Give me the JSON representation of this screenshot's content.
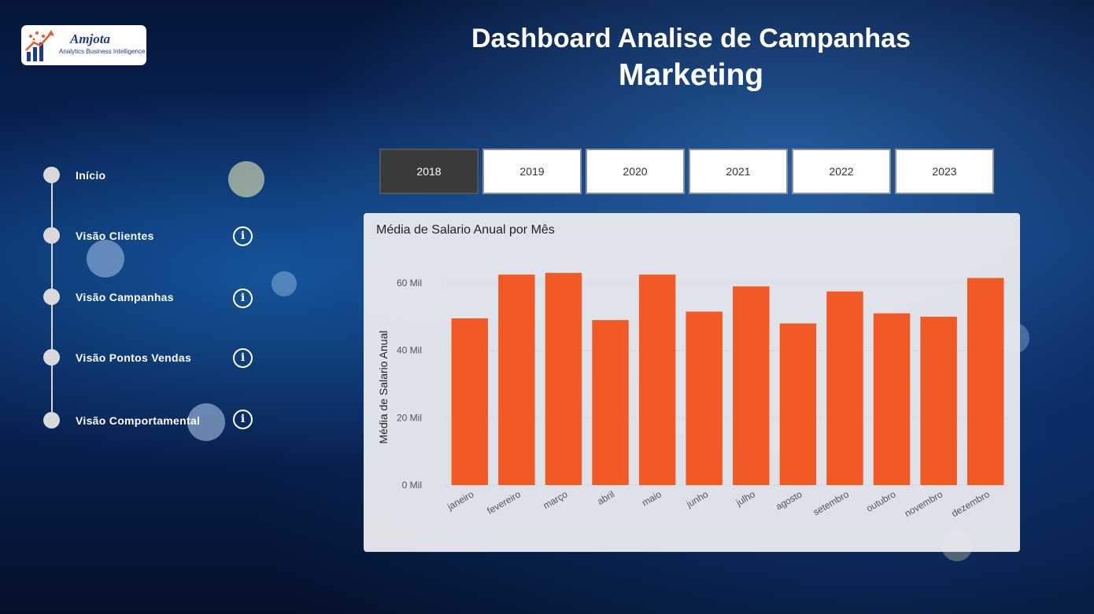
{
  "logo": {
    "name": "Amjota",
    "subtitle": "Analytics Business Intelligence"
  },
  "header": {
    "title_line1": "Dashboard Analise de Campanhas",
    "title_line2": "Marketing"
  },
  "nav": {
    "items": [
      {
        "label": "Início",
        "info": false
      },
      {
        "label": "Visão Clientes",
        "info": true
      },
      {
        "label": "Visão Campanhas",
        "info": true
      },
      {
        "label": "Visão Pontos Vendas",
        "info": true
      },
      {
        "label": "Visão Comportamental",
        "info": true
      }
    ],
    "info_glyph": "i"
  },
  "years": {
    "items": [
      "2018",
      "2019",
      "2020",
      "2021",
      "2022",
      "2023"
    ],
    "selected": "2018"
  },
  "chart_data": {
    "type": "bar",
    "title": "Média de Salario Anual por Mês",
    "ylabel": "Média de Salario Anual",
    "xlabel": "",
    "categories": [
      "janeiro",
      "fevereiro",
      "março",
      "abril",
      "maio",
      "junho",
      "julho",
      "agosto",
      "setembro",
      "outubro",
      "novembro",
      "dezembro"
    ],
    "values": [
      49500,
      62500,
      63000,
      49000,
      62500,
      51500,
      59000,
      48000,
      57500,
      51000,
      50000,
      61500
    ],
    "ylim": [
      0,
      60000
    ],
    "yticks": [
      0,
      20000,
      40000,
      60000
    ],
    "ytick_labels": [
      "0 Mil",
      "20 Mil",
      "40 Mil",
      "60 Mil"
    ],
    "grid": true,
    "bar_color": "#f15a24"
  }
}
